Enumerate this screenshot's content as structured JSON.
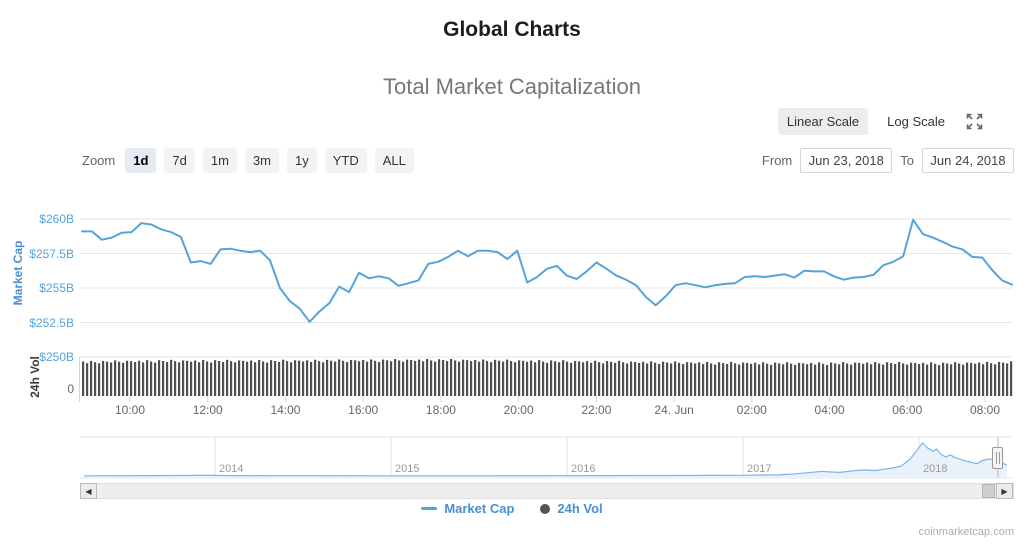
{
  "page": {
    "title": "Global Charts",
    "subtitle": "Total Market Capitalization",
    "attribution": "coinmarketcap.com"
  },
  "scale_toggle": {
    "linear_label": "Linear Scale",
    "log_label": "Log Scale",
    "active": "Linear Scale",
    "icons": [
      "fullscreen-icon",
      "hamburger-menu-icon"
    ]
  },
  "zoom_bar": {
    "label": "Zoom",
    "options": [
      {
        "label": "1d",
        "active": true
      },
      {
        "label": "7d",
        "active": false
      },
      {
        "label": "1m",
        "active": false
      },
      {
        "label": "3m",
        "active": false
      },
      {
        "label": "1y",
        "active": false
      },
      {
        "label": "YTD",
        "active": false
      },
      {
        "label": "ALL",
        "active": false
      }
    ],
    "from_label": "From",
    "from_value": "Jun 23, 2018",
    "to_label": "To",
    "to_value": "Jun 24, 2018"
  },
  "legend": [
    {
      "label": "Market Cap",
      "symbol": "line",
      "color": "#55a3db"
    },
    {
      "label": "24h Vol",
      "symbol": "circle",
      "color": "#545454"
    }
  ],
  "chart_data": {
    "main": {
      "type": "line",
      "title": "Total Market Capitalization",
      "series_name": "Market Cap",
      "color": "#55a3db",
      "y_axis": {
        "title": "Market Cap",
        "tick_labels": [
          "$260B",
          "$257.5B",
          "$255B",
          "$252.5B",
          "$250B"
        ],
        "tick_values_billions": [
          260,
          257.5,
          255,
          252.5,
          250
        ],
        "ylim_billions": [
          250,
          261
        ]
      },
      "x_axis": {
        "tick_labels": [
          "10:00",
          "12:00",
          "14:00",
          "16:00",
          "18:00",
          "20:00",
          "22:00",
          "24. Jun",
          "02:00",
          "04:00",
          "06:00",
          "08:00"
        ],
        "range": "Jun 23 2018 ~08:45 to Jun 24 2018 ~08:45"
      },
      "interval_minutes": 15,
      "values_billions": [
        259.1,
        259.1,
        258.5,
        258.65,
        259.0,
        259.05,
        259.7,
        259.6,
        259.25,
        259.05,
        258.7,
        256.85,
        256.95,
        256.75,
        257.8,
        257.85,
        257.7,
        257.6,
        257.7,
        257.0,
        255.0,
        254.05,
        253.5,
        252.55,
        253.3,
        253.9,
        255.1,
        254.7,
        256.1,
        255.7,
        255.85,
        255.7,
        255.15,
        255.35,
        255.55,
        256.75,
        256.9,
        257.25,
        257.7,
        257.3,
        257.7,
        257.7,
        257.6,
        257.1,
        257.7,
        255.4,
        255.8,
        256.4,
        256.6,
        255.9,
        255.65,
        256.2,
        256.85,
        256.4,
        255.9,
        255.6,
        255.2,
        254.35,
        253.75,
        254.4,
        255.2,
        255.35,
        255.2,
        255.05,
        255.2,
        255.3,
        255.35,
        255.8,
        255.85,
        255.8,
        255.9,
        256.0,
        255.75,
        256.25,
        256.2,
        256.2,
        255.85,
        255.6,
        255.75,
        255.8,
        255.95,
        256.65,
        256.9,
        257.3,
        259.95,
        258.9,
        258.65,
        258.35,
        258.0,
        257.8,
        257.25,
        257.2,
        256.3,
        255.55,
        255.25
      ]
    },
    "volume": {
      "type": "bar",
      "series_name": "24h Vol",
      "y_axis": {
        "title": "24h Vol",
        "tick_labels": [
          "0"
        ]
      },
      "bar_color": "#4f4f4f",
      "bar_count": 233,
      "approx_max_billions": 15.5,
      "height_envelope": [
        [
          0,
          34
        ],
        [
          0.08,
          35
        ],
        [
          0.2,
          35
        ],
        [
          0.3,
          35.5
        ],
        [
          0.38,
          36
        ],
        [
          0.48,
          35
        ],
        [
          0.58,
          34
        ],
        [
          0.68,
          33
        ],
        [
          0.78,
          32.5
        ],
        [
          0.86,
          33
        ],
        [
          0.93,
          32.5
        ],
        [
          1,
          33.5
        ]
      ],
      "jitter_cycle": [
        0.5,
        -1.2,
        1.0,
        -0.4,
        -1.6,
        0.8,
        0.0,
        -0.9,
        1.2,
        -0.2,
        -1.4,
        0.6,
        0.2,
        -0.7
      ]
    },
    "navigator": {
      "type": "area",
      "x_labels": [
        "2014",
        "2015",
        "2016",
        "2017",
        "2018"
      ],
      "line_color": "#7cb5ec",
      "fill_color": "#e9f2fb",
      "max_billions": 830,
      "series_year_value_billions": [
        [
          2013.3,
          4
        ],
        [
          2013.6,
          10
        ],
        [
          2013.9,
          15
        ],
        [
          2014.0,
          14
        ],
        [
          2014.1,
          10
        ],
        [
          2014.3,
          8
        ],
        [
          2014.6,
          7
        ],
        [
          2014.9,
          5
        ],
        [
          2015.0,
          5
        ],
        [
          2015.3,
          6
        ],
        [
          2015.6,
          5
        ],
        [
          2015.9,
          7
        ],
        [
          2016.0,
          8
        ],
        [
          2016.2,
          9
        ],
        [
          2016.4,
          12
        ],
        [
          2016.6,
          13
        ],
        [
          2016.8,
          14
        ],
        [
          2017.0,
          18
        ],
        [
          2017.1,
          25
        ],
        [
          2017.2,
          28
        ],
        [
          2017.3,
          55
        ],
        [
          2017.4,
          95
        ],
        [
          2017.45,
          115
        ],
        [
          2017.5,
          100
        ],
        [
          2017.55,
          90
        ],
        [
          2017.6,
          115
        ],
        [
          2017.65,
          140
        ],
        [
          2017.7,
          150
        ],
        [
          2017.75,
          135
        ],
        [
          2017.8,
          170
        ],
        [
          2017.85,
          200
        ],
        [
          2017.9,
          250
        ],
        [
          2017.95,
          430
        ],
        [
          2017.98,
          600
        ],
        [
          2018.02,
          830
        ],
        [
          2018.05,
          700
        ],
        [
          2018.08,
          620
        ],
        [
          2018.1,
          680
        ],
        [
          2018.12,
          560
        ],
        [
          2018.15,
          480
        ],
        [
          2018.18,
          530
        ],
        [
          2018.2,
          470
        ],
        [
          2018.25,
          400
        ],
        [
          2018.3,
          340
        ],
        [
          2018.33,
          310
        ],
        [
          2018.36,
          390
        ],
        [
          2018.4,
          430
        ],
        [
          2018.43,
          410
        ],
        [
          2018.46,
          370
        ],
        [
          2018.48,
          310
        ],
        [
          2018.5,
          280
        ]
      ]
    }
  }
}
